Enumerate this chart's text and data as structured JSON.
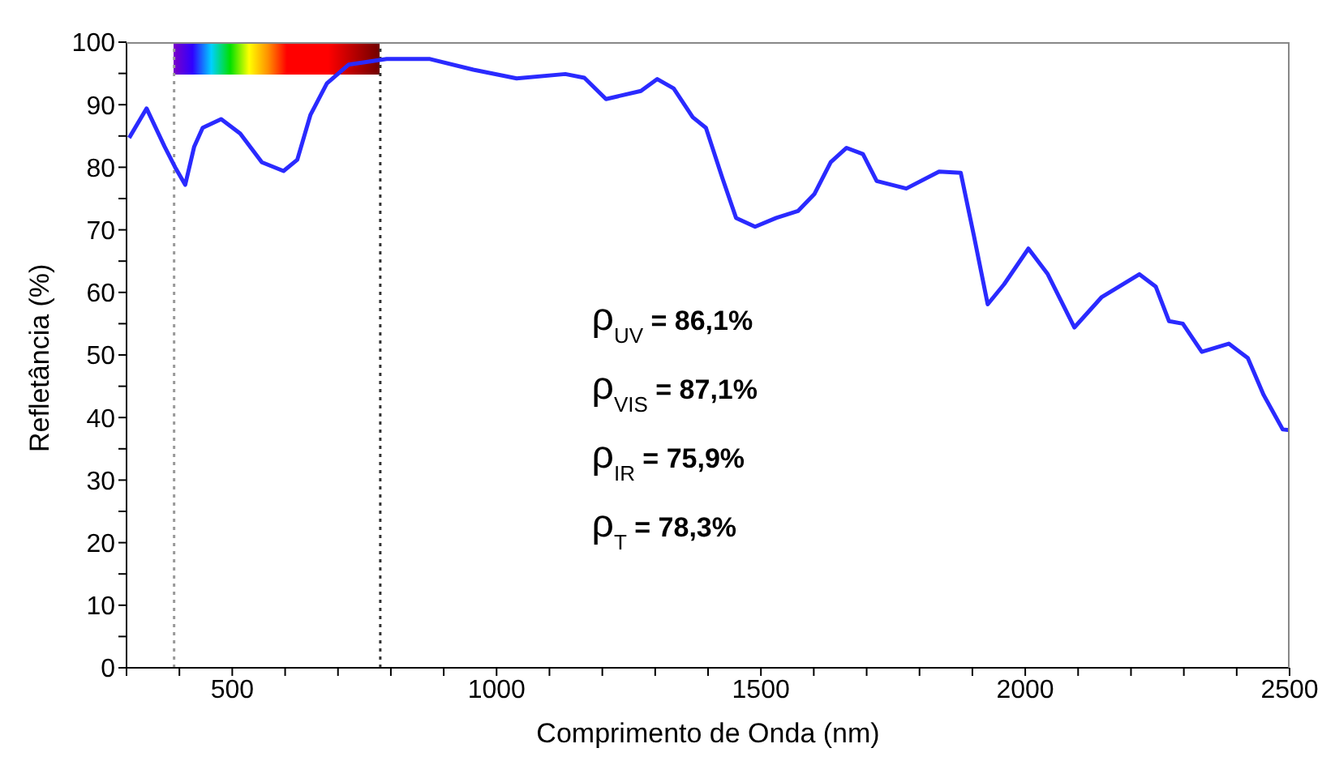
{
  "chart_data": {
    "type": "line",
    "xlabel": "Comprimento de Onda (nm)",
    "ylabel": "Refletância (%)",
    "xlim": [
      300,
      2500
    ],
    "xticks": [
      {
        "value": 300,
        "label": null
      },
      {
        "value": 400,
        "label": null
      },
      500,
      {
        "value": 600,
        "label": null
      },
      {
        "value": 700,
        "label": null
      },
      {
        "value": 800,
        "label": null
      },
      {
        "value": 900,
        "label": null
      },
      1000,
      {
        "value": 1100,
        "label": null
      },
      {
        "value": 1200,
        "label": null
      },
      {
        "value": 1300,
        "label": null
      },
      {
        "value": 1400,
        "label": null
      },
      1500,
      {
        "value": 1600,
        "label": null
      },
      {
        "value": 1700,
        "label": null
      },
      {
        "value": 1800,
        "label": null
      },
      {
        "value": 1900,
        "label": null
      },
      2000,
      {
        "value": 2100,
        "label": null
      },
      {
        "value": 2200,
        "label": null
      },
      {
        "value": 2300,
        "label": null
      },
      {
        "value": 2400,
        "label": null
      },
      2500
    ],
    "ylim": [
      0,
      100
    ],
    "yticks": [
      0,
      {
        "value": 5,
        "label": null
      },
      10,
      {
        "value": 15,
        "label": null
      },
      20,
      {
        "value": 25,
        "label": null
      },
      30,
      {
        "value": 35,
        "label": null
      },
      40,
      {
        "value": 45,
        "label": null
      },
      50,
      {
        "value": 55,
        "label": null
      },
      60,
      {
        "value": 65,
        "label": null
      },
      70,
      {
        "value": 75,
        "label": null
      },
      80,
      {
        "value": 85,
        "label": null
      },
      90,
      {
        "value": 95,
        "label": null
      },
      100
    ],
    "marker": "none",
    "line_style": "solid",
    "x": [
      305,
      338,
      372,
      392,
      411,
      428,
      444,
      479,
      515,
      556,
      597,
      623,
      648,
      679,
      720,
      792,
      874,
      956,
      1038,
      1130,
      1166,
      1207,
      1273,
      1304,
      1335,
      1371,
      1396,
      1427,
      1453,
      1489,
      1529,
      1570,
      1601,
      1632,
      1662,
      1693,
      1719,
      1775,
      1837,
      1878,
      1903,
      1929,
      1960,
      2006,
      2042,
      2093,
      2144,
      2216,
      2247,
      2272,
      2298,
      2334,
      2385,
      2421,
      2451,
      2487,
      2500
    ],
    "series": [
      {
        "color": "#2a2aff",
        "values": [
          84.7,
          89.4,
          83.3,
          80,
          77.2,
          83.3,
          86.3,
          87.7,
          85.4,
          80.8,
          79.4,
          81.2,
          88.4,
          93.4,
          96.4,
          97.3,
          97.3,
          95.6,
          94.2,
          94.9,
          94.3,
          90.9,
          92.2,
          94.1,
          92.6,
          88.0,
          86.3,
          78.3,
          71.9,
          70.5,
          71.9,
          73.0,
          75.7,
          80.8,
          83.1,
          82.1,
          77.8,
          76.6,
          79.3,
          79.1,
          69.0,
          58.1,
          61.3,
          67.0,
          63.0,
          54.4,
          59.2,
          62.9,
          60.9,
          55.4,
          55.0,
          50.5,
          51.8,
          49.5,
          43.6,
          38.1,
          38
        ]
      }
    ],
    "ref_lines": [
      {
        "axis": "x",
        "value": 390,
        "color": "#999999",
        "line_style": "dotted"
      },
      {
        "axis": "x",
        "value": 780,
        "color": "#333333",
        "line_style": "dotted"
      }
    ],
    "annotations": [
      "ρ$_{UV}$ = 86,1%",
      "ρ$_{VIS}$ = 87,1%",
      "ρ$_{IR}$ = 75,9%",
      "ρ$_{T}$  = 78,3%"
    ]
  }
}
